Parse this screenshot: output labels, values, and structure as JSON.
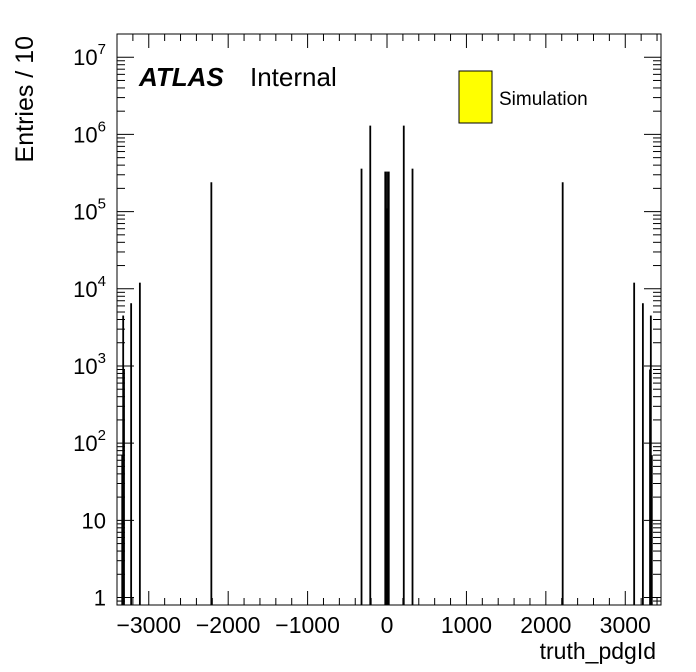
{
  "chart_data": {
    "type": "bar",
    "xlabel": "truth_pdgId",
    "ylabel": "Entries / 10",
    "xlim": [
      -3400,
      3450
    ],
    "ylim": [
      0.8,
      20000000
    ],
    "yscale": "log",
    "x_ticks": [
      -3000,
      -2000,
      -1000,
      0,
      1000,
      2000,
      3000
    ],
    "x_tick_labels": [
      "−3000",
      "−2000",
      "−1000",
      "0",
      "1000",
      "2000",
      "3000"
    ],
    "y_ticks": [
      {
        "value": 1,
        "base": "1",
        "exp": ""
      },
      {
        "value": 10,
        "base": "10",
        "exp": ""
      },
      {
        "value": 100,
        "base": "10",
        "exp": "2"
      },
      {
        "value": 1000,
        "base": "10",
        "exp": "3"
      },
      {
        "value": 10000,
        "base": "10",
        "exp": "4"
      },
      {
        "value": 100000,
        "base": "10",
        "exp": "5"
      },
      {
        "value": 1000000,
        "base": "10",
        "exp": "6"
      },
      {
        "value": 10000000,
        "base": "10",
        "exp": "7"
      }
    ],
    "legend": {
      "label": "Simulation",
      "color": "#ffff00",
      "position": "top-right"
    },
    "atlas_label": "ATLAS",
    "status_label": "Internal",
    "bin_width": 10,
    "series": [
      {
        "name": "Simulation",
        "x": [
          -3334,
          -3322,
          -3312,
          -3222,
          -3112,
          -2212,
          -321,
          -211,
          -22,
          -13,
          0,
          13,
          22,
          211,
          321,
          2212,
          3112,
          3222,
          3312,
          3322,
          3334
        ],
        "values": [
          70,
          4500,
          900,
          6500,
          12000,
          240000,
          360000,
          1300000,
          330000,
          110000,
          330000,
          110000,
          330000,
          1300000,
          360000,
          240000,
          12000,
          6500,
          900,
          4500,
          70
        ]
      }
    ]
  }
}
